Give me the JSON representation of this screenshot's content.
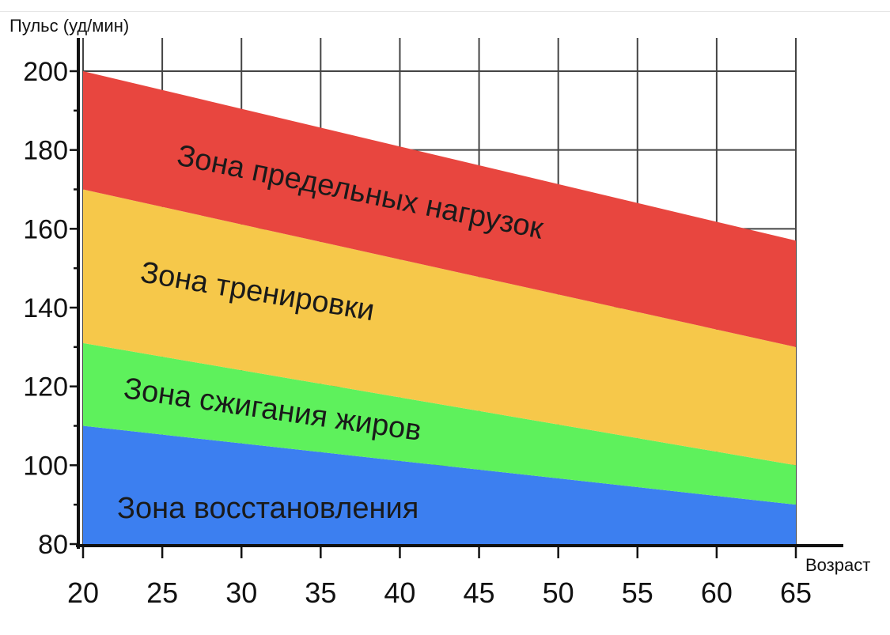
{
  "chart_data": {
    "type": "area",
    "ylabel": "Пульс (уд/мин)",
    "xlabel": "Возраст",
    "xlim": [
      20,
      65
    ],
    "ylim": [
      80,
      200
    ],
    "x_ticks": [
      20,
      25,
      30,
      35,
      40,
      45,
      50,
      55,
      60,
      65
    ],
    "y_ticks": [
      80,
      100,
      120,
      140,
      160,
      180,
      200
    ],
    "grid": true,
    "x": [
      20,
      65
    ],
    "series": [
      {
        "name": "Зона восстановления",
        "color": "#3c7ff0",
        "lower": [
          80,
          80
        ],
        "upper": [
          110,
          90
        ]
      },
      {
        "name": "Зона сжигания жиров",
        "color": "#5ef15c",
        "lower": [
          110,
          90
        ],
        "upper": [
          131,
          100
        ]
      },
      {
        "name": "Зона тренировки",
        "color": "#f6c84a",
        "lower": [
          131,
          100
        ],
        "upper": [
          170,
          130
        ]
      },
      {
        "name": "Зона предельных нагрузок",
        "color": "#e8463f",
        "lower": [
          170,
          130
        ],
        "upper": [
          200,
          157
        ]
      }
    ]
  }
}
